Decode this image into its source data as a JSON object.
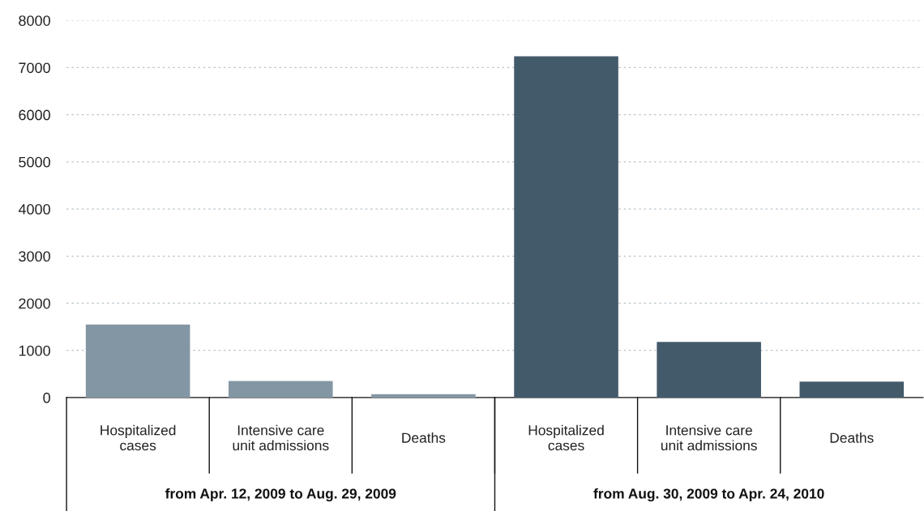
{
  "chart_data": {
    "type": "bar",
    "categories": [
      "Hospitalized\ncases",
      "Intensive care\nunit admissions",
      "Deaths",
      "Hospitalized\ncases",
      "Intensive care\nunit admissions",
      "Deaths"
    ],
    "values": [
      1550,
      350,
      70,
      7240,
      1180,
      340
    ],
    "colors": [
      "#8396a4",
      "#8396a4",
      "#8396a4",
      "#435a6a",
      "#435a6a",
      "#435a6a"
    ],
    "annotations": [
      "from Apr. 12, 2009 to Aug. 29, 2009",
      "from Aug. 30, 2009 to Apr. 24, 2010"
    ],
    "ylim": [
      0,
      8000
    ],
    "yticks": [
      0,
      1000,
      2000,
      3000,
      4000,
      5000,
      6000,
      7000,
      8000
    ],
    "grid": "y"
  }
}
